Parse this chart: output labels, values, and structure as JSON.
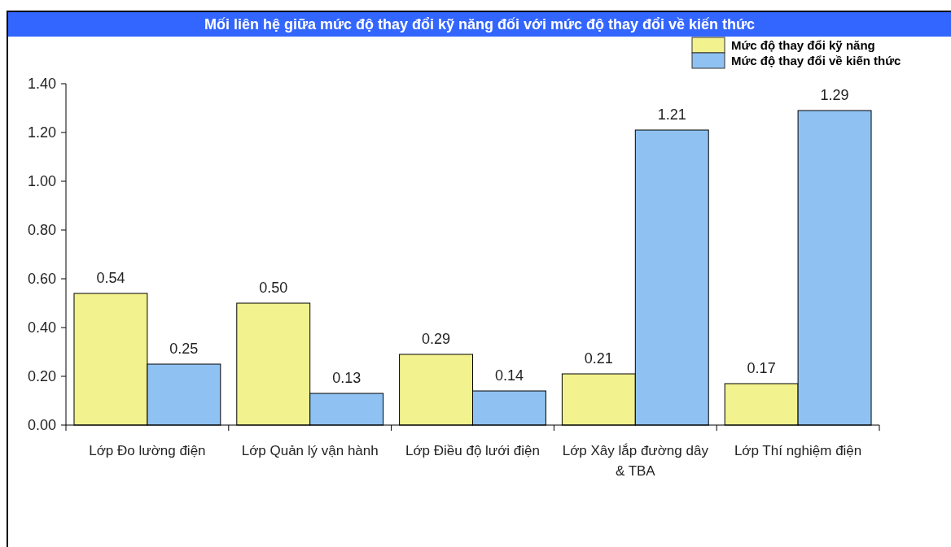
{
  "chart_data": {
    "type": "bar",
    "title": "Mối liên hệ giữa mức độ thay đổi kỹ năng đối với mức độ thay đổi về kiến thức",
    "categories": [
      "Lớp Đo lường điện",
      "Lớp Quản lý vận hành",
      "Lớp Điều độ lưới điện",
      "Lớp Xây lắp đường dây & TBA",
      "Lớp Thí nghiệm điện"
    ],
    "series": [
      {
        "name": "Mức độ thay đổi kỹ năng",
        "color": "#f2f28e",
        "values": [
          0.54,
          0.5,
          0.29,
          0.21,
          0.17
        ],
        "value_labels": [
          "0.54",
          "0.50",
          "0.29",
          "0.21",
          "0.17"
        ]
      },
      {
        "name": "Mức độ thay đổi về kiến thức",
        "color": "#8fc2f2",
        "values": [
          0.25,
          0.13,
          0.14,
          1.21,
          1.29
        ],
        "value_labels": [
          "0.25",
          "0.13",
          "0.14",
          "1.21",
          "1.29"
        ]
      }
    ],
    "ylim": [
      0,
      1.4
    ],
    "yticks": [
      {
        "value": 0,
        "label": "0.00"
      },
      {
        "value": 0.2,
        "label": "0.20"
      },
      {
        "value": 0.4,
        "label": "0.40"
      },
      {
        "value": 0.6,
        "label": "0.60"
      },
      {
        "value": 0.8,
        "label": "0.80"
      },
      {
        "value": 1,
        "label": "1.00"
      },
      {
        "value": 1.2,
        "label": "1.20"
      },
      {
        "value": 1.4,
        "label": "1.40"
      }
    ],
    "legend": "top right"
  }
}
